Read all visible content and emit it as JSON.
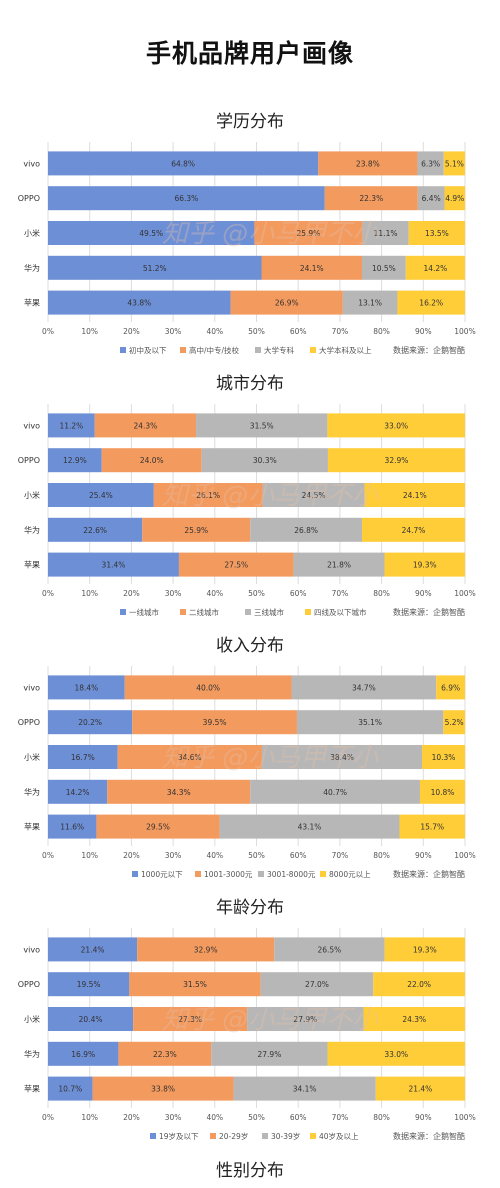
{
  "page": {
    "title": "手机品牌用户画像"
  },
  "colors": {
    "s1": "#6d8fd6",
    "s2": "#f39a5e",
    "s3": "#b7b7b7",
    "s4": "#ffcd38",
    "grid": "#dddddd",
    "watermark": "#e6c0a8"
  },
  "watermark": "知乎 @小马甲不小",
  "source_text": "数据来源：企鹅智酷",
  "final_section_title": "性别分布",
  "chart_data": [
    {
      "type": "bar",
      "orientation": "horizontal",
      "stacked": "100%",
      "title": "学历分布",
      "categories": [
        "vivo",
        "OPPO",
        "小米",
        "华为",
        "苹果"
      ],
      "x_ticks": [
        "0%",
        "10%",
        "20%",
        "30%",
        "40%",
        "50%",
        "60%",
        "70%",
        "80%",
        "90%",
        "100%"
      ],
      "xlim": [
        0,
        100
      ],
      "grid": true,
      "legend_position": "bottom",
      "series": [
        {
          "name": "初中及以下",
          "values": [
            64.8,
            66.3,
            49.5,
            51.2,
            43.8
          ]
        },
        {
          "name": "高中/中专/技校",
          "values": [
            23.8,
            22.3,
            25.9,
            24.1,
            26.9
          ]
        },
        {
          "name": "大学专科",
          "values": [
            6.3,
            6.4,
            11.1,
            10.5,
            13.1
          ]
        },
        {
          "name": "大学本科及以上",
          "values": [
            5.1,
            4.9,
            13.5,
            14.2,
            16.2
          ]
        }
      ]
    },
    {
      "type": "bar",
      "orientation": "horizontal",
      "stacked": "100%",
      "title": "城市分布",
      "categories": [
        "vivo",
        "OPPO",
        "小米",
        "华为",
        "苹果"
      ],
      "x_ticks": [
        "0%",
        "10%",
        "20%",
        "30%",
        "40%",
        "50%",
        "60%",
        "70%",
        "80%",
        "90%",
        "100%"
      ],
      "xlim": [
        0,
        100
      ],
      "grid": true,
      "legend_position": "bottom",
      "series": [
        {
          "name": "一线城市",
          "values": [
            11.2,
            12.9,
            25.4,
            22.6,
            31.4
          ]
        },
        {
          "name": "二线城市",
          "values": [
            24.3,
            24.0,
            26.1,
            25.9,
            27.5
          ]
        },
        {
          "name": "三线城市",
          "values": [
            31.5,
            30.3,
            24.5,
            26.8,
            21.8
          ]
        },
        {
          "name": "四线及以下城市",
          "values": [
            33.0,
            32.9,
            24.1,
            24.7,
            19.3
          ]
        }
      ]
    },
    {
      "type": "bar",
      "orientation": "horizontal",
      "stacked": "100%",
      "title": "收入分布",
      "categories": [
        "vivo",
        "OPPO",
        "小米",
        "华为",
        "苹果"
      ],
      "x_ticks": [
        "0%",
        "10%",
        "20%",
        "30%",
        "40%",
        "50%",
        "60%",
        "70%",
        "80%",
        "90%",
        "100%"
      ],
      "xlim": [
        0,
        100
      ],
      "grid": true,
      "legend_position": "bottom",
      "series": [
        {
          "name": "1000元以下",
          "values": [
            18.4,
            20.2,
            16.7,
            14.2,
            11.6
          ]
        },
        {
          "name": "1001-3000元",
          "values": [
            40.0,
            39.5,
            34.6,
            34.3,
            29.5
          ]
        },
        {
          "name": "3001-8000元",
          "values": [
            34.7,
            35.1,
            38.4,
            40.7,
            43.1
          ]
        },
        {
          "name": "8000元以上",
          "values": [
            6.9,
            5.2,
            10.3,
            10.8,
            15.7
          ]
        }
      ]
    },
    {
      "type": "bar",
      "orientation": "horizontal",
      "stacked": "100%",
      "title": "年龄分布",
      "categories": [
        "vivo",
        "OPPO",
        "小米",
        "华为",
        "苹果"
      ],
      "x_ticks": [
        "0%",
        "10%",
        "20%",
        "30%",
        "40%",
        "50%",
        "60%",
        "70%",
        "80%",
        "90%",
        "100%"
      ],
      "xlim": [
        0,
        100
      ],
      "grid": true,
      "legend_position": "bottom",
      "series": [
        {
          "name": "19岁及以下",
          "values": [
            21.4,
            19.5,
            20.4,
            16.9,
            10.7
          ]
        },
        {
          "name": "20-29岁",
          "values": [
            32.9,
            31.5,
            27.3,
            22.3,
            33.8
          ]
        },
        {
          "name": "30-39岁",
          "values": [
            26.5,
            27.0,
            27.9,
            27.9,
            34.1
          ]
        },
        {
          "name": "40岁及以上",
          "values": [
            19.3,
            22.0,
            24.3,
            33.0,
            21.4
          ]
        }
      ]
    }
  ]
}
